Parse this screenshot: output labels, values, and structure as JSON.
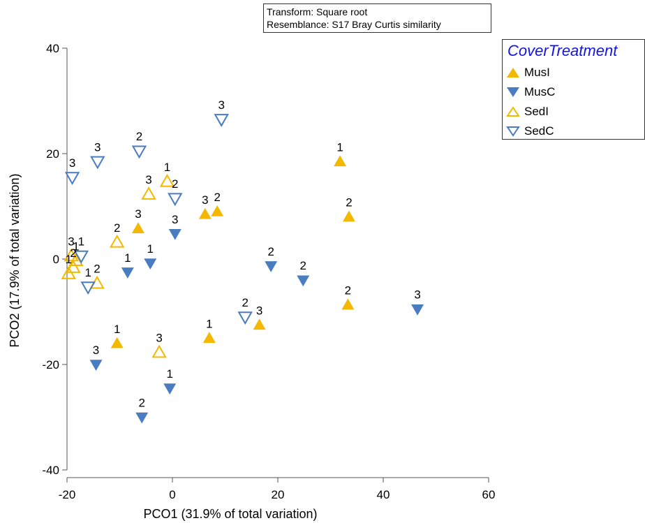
{
  "note": {
    "line1": "Transform: Square root",
    "line2": "Resemblance: S17 Bray Curtis similarity"
  },
  "legend": {
    "title": "CoverTreatment",
    "placement": "top-right",
    "items": [
      {
        "key": "MusI",
        "label": "MusI"
      },
      {
        "key": "MusC",
        "label": "MusC"
      },
      {
        "key": "SedI",
        "label": "SedI"
      },
      {
        "key": "SedC",
        "label": "SedC"
      }
    ]
  },
  "colors": {
    "orange": "#f5b800",
    "blue": "#4a7cc2"
  },
  "chart_data": {
    "type": "scatter",
    "xlabel": "PCO1 (31.9% of total variation)",
    "ylabel": "PCO2 (17.9% of total variation)",
    "xlim": [
      -20,
      60
    ],
    "ylim": [
      -40,
      40
    ],
    "xticks": [
      -20,
      0,
      20,
      40,
      60
    ],
    "yticks": [
      40,
      20,
      0,
      -20,
      -40
    ],
    "grid": false,
    "series": [
      {
        "name": "MusI",
        "marker": "triangle-up-filled",
        "color": "#f5b800",
        "points": [
          {
            "x": 31.8,
            "y": 18.5,
            "label": "1"
          },
          {
            "x": 33.5,
            "y": 8.0,
            "label": "2"
          },
          {
            "x": 6.2,
            "y": 8.5,
            "label": "3"
          },
          {
            "x": 8.5,
            "y": 9.0,
            "label": "2"
          },
          {
            "x": -6.5,
            "y": 5.8,
            "label": "3"
          },
          {
            "x": 33.3,
            "y": -8.7,
            "label": "2"
          },
          {
            "x": 16.5,
            "y": -12.5,
            "label": "3"
          },
          {
            "x": 7.0,
            "y": -15.0,
            "label": "1"
          },
          {
            "x": -10.5,
            "y": -16.0,
            "label": "1"
          }
        ]
      },
      {
        "name": "MusC",
        "marker": "triangle-down-filled",
        "color": "#4a7cc2",
        "points": [
          {
            "x": 0.5,
            "y": 4.8,
            "label": "3"
          },
          {
            "x": -8.5,
            "y": -2.5,
            "label": "1"
          },
          {
            "x": -4.2,
            "y": -0.8,
            "label": "1"
          },
          {
            "x": 18.7,
            "y": -1.3,
            "label": "2"
          },
          {
            "x": 24.8,
            "y": -4.0,
            "label": "2"
          },
          {
            "x": 46.5,
            "y": -9.5,
            "label": "3"
          },
          {
            "x": -14.5,
            "y": -20.0,
            "label": "3"
          },
          {
            "x": -0.5,
            "y": -24.5,
            "label": "1"
          },
          {
            "x": -5.8,
            "y": -30.0,
            "label": "2"
          }
        ]
      },
      {
        "name": "SedI",
        "marker": "triangle-up-open",
        "color": "#f5b800",
        "points": [
          {
            "x": -1.0,
            "y": 14.7,
            "label": "1"
          },
          {
            "x": -4.5,
            "y": 12.3,
            "label": "3"
          },
          {
            "x": -10.5,
            "y": 3.2,
            "label": "2"
          },
          {
            "x": -19.2,
            "y": 0.6,
            "label": "3"
          },
          {
            "x": -18.3,
            "y": -0.3,
            "label": "1"
          },
          {
            "x": -18.8,
            "y": -1.6,
            "label": "2"
          },
          {
            "x": -19.7,
            "y": -2.8,
            "label": "1"
          },
          {
            "x": -14.3,
            "y": -4.6,
            "label": "2"
          },
          {
            "x": -2.5,
            "y": -17.7,
            "label": "3"
          }
        ]
      },
      {
        "name": "SedC",
        "marker": "triangle-down-open",
        "color": "#4a7cc2",
        "points": [
          {
            "x": 9.3,
            "y": 26.5,
            "label": "3"
          },
          {
            "x": -6.3,
            "y": 20.5,
            "label": "2"
          },
          {
            "x": -14.2,
            "y": 18.5,
            "label": "3"
          },
          {
            "x": -19.0,
            "y": 15.5,
            "label": "3"
          },
          {
            "x": 0.5,
            "y": 11.5,
            "label": "2"
          },
          {
            "x": -17.3,
            "y": 0.6,
            "label": "1"
          },
          {
            "x": -16.0,
            "y": -5.3,
            "label": "1"
          },
          {
            "x": 13.8,
            "y": -11.0,
            "label": "2"
          }
        ]
      }
    ]
  }
}
